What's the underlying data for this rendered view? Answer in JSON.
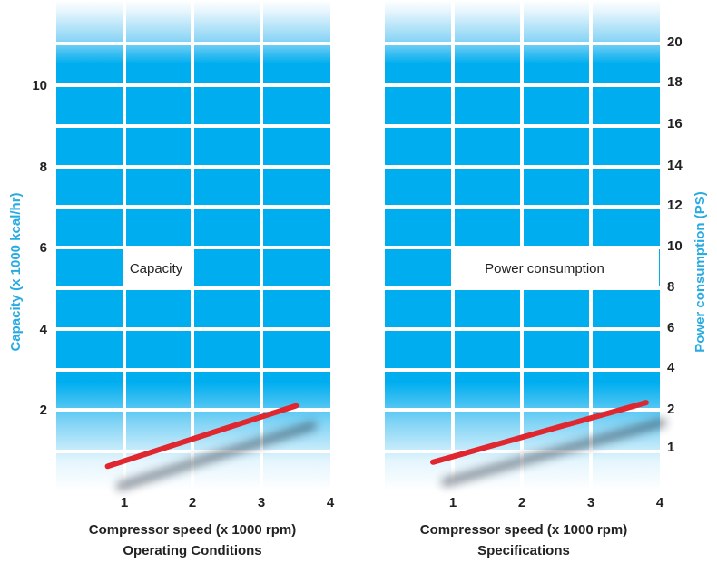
{
  "colors": {
    "panel_blue": "#00aeef",
    "panel_light": "#d9f2fc",
    "grid_line": "#ffffff",
    "series_line": "#e0262f",
    "shadow": "#1a2a3a",
    "accent_label": "#29abe2",
    "text": "#222222"
  },
  "chart_data": [
    {
      "type": "line",
      "panel": "left",
      "title": "Operating Conditions",
      "xlabel": "Compressor speed (x 1000 rpm)",
      "ylabel": "Capacity (x 1000 kcal/hr)",
      "box_label": "Capacity",
      "x_ticks": [
        "1",
        "2",
        "3",
        "4"
      ],
      "y_ticks": [
        "2",
        "4",
        "6",
        "8",
        "10"
      ],
      "xlim": [
        0,
        4
      ],
      "ylim": [
        0,
        11
      ],
      "grid": true,
      "series": [
        {
          "x": [
            0.75,
            3.5
          ],
          "y": [
            0.6,
            2.1
          ]
        }
      ]
    },
    {
      "type": "line",
      "panel": "right",
      "title": "Specifications",
      "xlabel": "Compressor speed (x 1000 rpm)",
      "ylabel": "Power consumption (PS)",
      "box_label": "Power consumption",
      "x_ticks": [
        "1",
        "2",
        "3",
        "4"
      ],
      "y_ticks": [
        "1",
        "2",
        "4",
        "6",
        "8",
        "10",
        "12",
        "14",
        "16",
        "18",
        "20"
      ],
      "xlim": [
        0,
        4
      ],
      "grid": true,
      "series": [
        {
          "x": [
            0.7,
            3.8
          ],
          "y": [
            0.6,
            2.3
          ]
        }
      ]
    }
  ]
}
